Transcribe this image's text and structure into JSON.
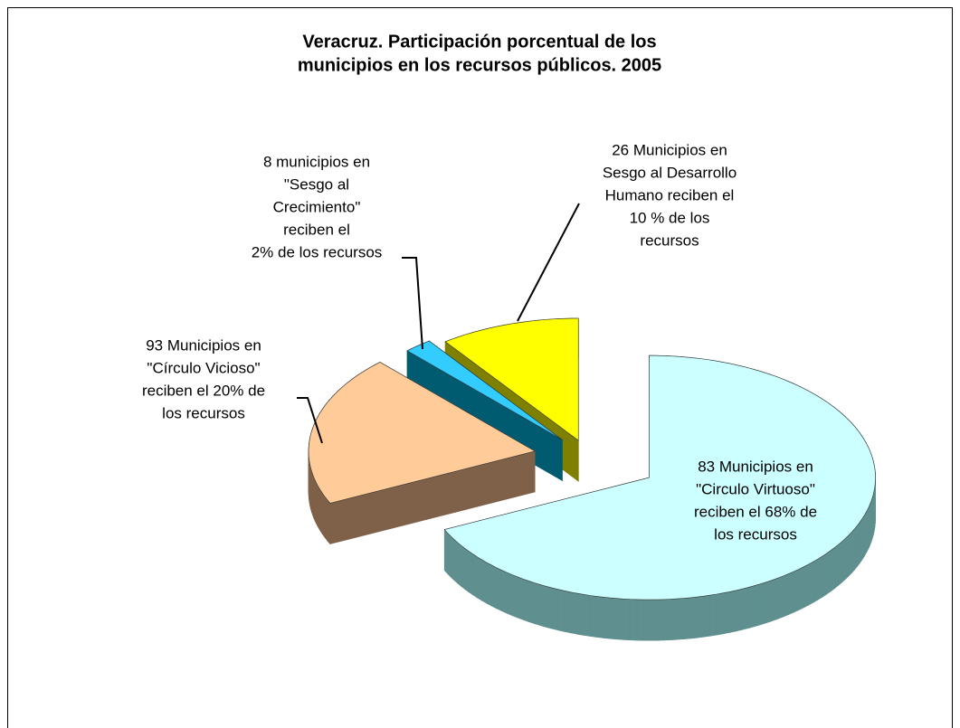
{
  "chart_data": {
    "type": "pie",
    "title": [
      "Veracruz. Participación porcentual de los",
      "municipios en los recursos públicos. 2005"
    ],
    "categories": [
      [
        "83 Municipios en",
        "\"Circulo Virtuoso\"",
        "reciben el 68% de",
        "los recursos"
      ],
      [
        "93 Municipios en",
        "\"Círculo Vicioso\"",
        "reciben el 20% de",
        "los recursos"
      ],
      [
        "8 municipios en",
        "\"Sesgo al",
        "Crecimiento\"",
        "reciben el",
        "2%  de los recursos"
      ],
      [
        "26 Municipios en",
        "Sesgo al  Desarrollo",
        "Humano reciben el",
        "10 % de los",
        "recursos"
      ]
    ],
    "values": [
      68,
      20,
      2,
      10
    ],
    "colors": [
      "#ccffff",
      "#ffcc99",
      "#33ccff",
      "#ffff00"
    ],
    "side_colors": [
      "#5f8f8f",
      "#7f6048",
      "#005a70",
      "#7f7f00"
    ]
  }
}
